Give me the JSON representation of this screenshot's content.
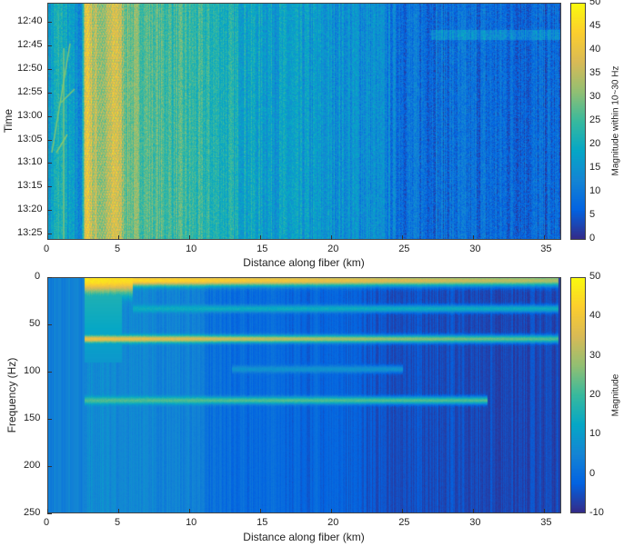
{
  "chart_data": [
    {
      "type": "heatmap",
      "title": "",
      "xlabel": "Distance along fiber (km)",
      "ylabel": "Time",
      "xlim": [
        0,
        36.2
      ],
      "xticks": [
        0,
        5,
        10,
        15,
        20,
        25,
        30,
        35
      ],
      "yticks": [
        "12:40",
        "12:45",
        "12:50",
        "12:55",
        "13:00",
        "13:05",
        "13:10",
        "13:15",
        "13:20",
        "13:25"
      ],
      "ylim": [
        "12:36",
        "13:26"
      ],
      "colorbar": {
        "label": "Magnitude within 10~30 Hz",
        "range": [
          0,
          50
        ],
        "ticks": [
          0,
          5,
          10,
          15,
          20,
          25,
          30,
          35,
          40,
          45,
          50
        ],
        "colormap": "parula"
      },
      "magnitude_profile_by_distance": {
        "distance_km": [
          0,
          0.8,
          1.5,
          2.4,
          2.7,
          3.2,
          4.0,
          4.9,
          5.3,
          7,
          10,
          12,
          15,
          20,
          23,
          25,
          30,
          36
        ],
        "magnitude": [
          15,
          22,
          17,
          13,
          42,
          33,
          30,
          38,
          30,
          27,
          24,
          22,
          18,
          15,
          14,
          9,
          8,
          7
        ]
      }
    },
    {
      "type": "heatmap",
      "title": "",
      "xlabel": "Distance along fiber (km)",
      "ylabel": "Frequency (Hz)",
      "xlim": [
        0,
        36.2
      ],
      "ylim": [
        0,
        250
      ],
      "xticks": [
        0,
        5,
        10,
        15,
        20,
        25,
        30,
        35
      ],
      "yticks": [
        0,
        50,
        100,
        150,
        200,
        250
      ],
      "colorbar": {
        "label": "Magnitude",
        "range": [
          -10,
          50
        ],
        "ticks": [
          -10,
          0,
          10,
          20,
          30,
          40,
          50
        ],
        "colormap": "parula"
      },
      "background_by_distance": {
        "distance_km": [
          0,
          2.5,
          2.7,
          11,
          11.5,
          20,
          24,
          36
        ],
        "magnitude": [
          4,
          4,
          6,
          3,
          -1,
          -3,
          -6,
          -7
        ]
      },
      "bands": [
        {
          "frequency_hz": 3,
          "peak": 48,
          "extent_km": [
            2.6,
            36
          ]
        },
        {
          "frequency_hz": 33,
          "peak": 14,
          "extent_km": [
            6,
            36
          ]
        },
        {
          "frequency_hz": 65,
          "peak": 40,
          "extent_km": [
            2.6,
            36
          ]
        },
        {
          "frequency_hz": 97,
          "peak": 8,
          "extent_km": [
            13,
            25
          ]
        },
        {
          "frequency_hz": 130,
          "peak": 22,
          "extent_km": [
            2.6,
            31
          ]
        }
      ]
    }
  ]
}
